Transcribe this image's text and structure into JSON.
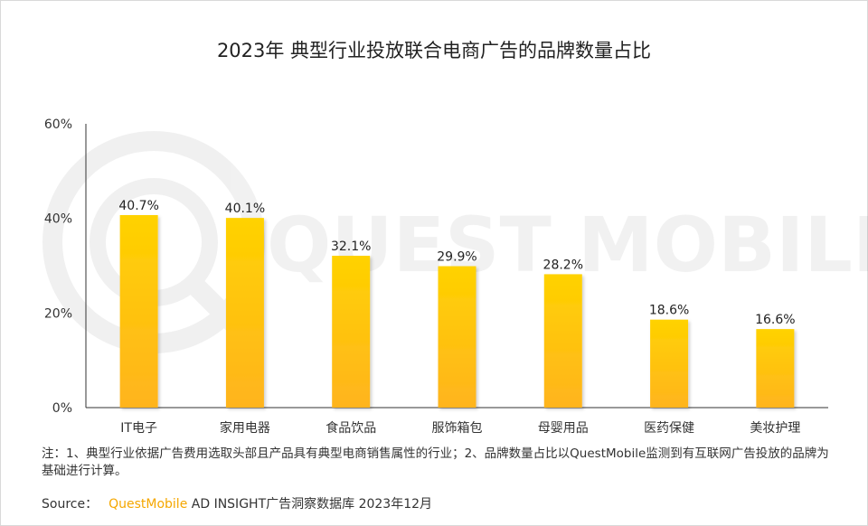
{
  "chart_data": {
    "type": "bar",
    "title": "2023年 典型行业投放联合电商广告的品牌数量占比",
    "categories": [
      "IT电子",
      "家用电器",
      "食品饮品",
      "服饰箱包",
      "母婴用品",
      "医药保健",
      "美妆护理"
    ],
    "values": [
      40.7,
      40.1,
      32.1,
      29.9,
      28.2,
      18.6,
      16.6
    ],
    "value_labels": [
      "40.7%",
      "40.1%",
      "32.1%",
      "29.9%",
      "28.2%",
      "18.6%",
      "16.6%"
    ],
    "yticks": [
      0,
      20,
      40,
      60
    ],
    "ytick_labels": [
      "0%",
      "20%",
      "40%",
      "60%"
    ],
    "ylim": [
      0,
      60
    ],
    "xlabel": "",
    "ylabel": "",
    "grid": false,
    "bar_color_top": "#ffd200",
    "bar_color_bottom": "#ffb41e"
  },
  "watermark": "QUEST MOBILE",
  "note": "注：1、典型行业依据广告费用选取头部且产品具有典型电商销售属性的行业；2、品牌数量占比以QuestMobile监测到有互联网广告投放的品牌为基础进行计算。",
  "source": {
    "label": "Source：",
    "brand": "QuestMobile",
    "text": " AD INSIGHT广告洞察数据库 2023年12月"
  }
}
